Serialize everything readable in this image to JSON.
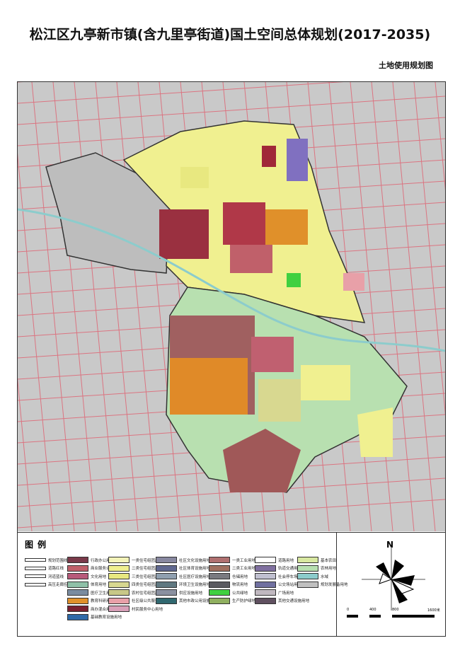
{
  "title": "松江区九亭新市镇(含九里亭街道)国土空间总体规划(2017-2035)",
  "subtitle": "土地使用规划图",
  "legend": {
    "title": "图例",
    "columns": [
      [
        {
          "label": "规划范围线",
          "type": "line"
        },
        {
          "label": "道路红线",
          "type": "line"
        },
        {
          "label": "河道蓝线",
          "type": "line"
        },
        {
          "label": "高压走廊控制线",
          "type": "line"
        }
      ],
      [
        {
          "label": "行政办公用地",
          "color": "#7a3a4a"
        },
        {
          "label": "商业服务业用地",
          "color": "#c0606a"
        },
        {
          "label": "文化用地",
          "color": "#b85a7a"
        },
        {
          "label": "体育用地",
          "color": "#8fc0a8"
        },
        {
          "label": "医疗卫生用地",
          "color": "#7a8ca0"
        },
        {
          "label": "教育科研用地",
          "color": "#e0902a"
        },
        {
          "label": "商办混合用地",
          "color": "#7a2030"
        },
        {
          "label": "基础教育设施用地",
          "color": "#2f6aa8"
        }
      ],
      [
        {
          "label": "一类住宅组团用地",
          "color": "#f3f3b8"
        },
        {
          "label": "二类住宅组团用地",
          "color": "#f0f090"
        },
        {
          "label": "三类住宅组团用地",
          "color": "#e8e880"
        },
        {
          "label": "四类住宅组团用地",
          "color": "#d8d890"
        },
        {
          "label": "农村住宅组团用地",
          "color": "#c8c888"
        },
        {
          "label": "社区级公共服务设施用地",
          "color": "#e8a0a8"
        },
        {
          "label": "村民服务中心用地",
          "color": "#d8a0b8"
        }
      ],
      [
        {
          "label": "社区文化设施用地",
          "color": "#8888a0"
        },
        {
          "label": "社区体育设施用地",
          "color": "#606890"
        },
        {
          "label": "社区医疗设施用地",
          "color": "#90a0b0"
        },
        {
          "label": "环境卫生设施用地",
          "color": "#607880"
        },
        {
          "label": "供应设施用地",
          "color": "#8a90a0"
        },
        {
          "label": "其他市政公用设施用地",
          "color": "#306870"
        }
      ],
      [
        {
          "label": "一类工业用地",
          "color": "#b07070"
        },
        {
          "label": "二类工业用地",
          "color": "#a07060"
        },
        {
          "label": "仓储用地",
          "color": "#7a7a80"
        },
        {
          "label": "物流用地",
          "color": "#5a5a60"
        },
        {
          "label": "公共绿地",
          "color": "#40d040"
        },
        {
          "label": "生产防护绿地",
          "color": "#90b060"
        }
      ],
      [
        {
          "label": "道路用地",
          "color": "#ffffff"
        },
        {
          "label": "轨道交通用地",
          "color": "#8070a0"
        },
        {
          "label": "社会停车场用地",
          "color": "#c0c0d0"
        },
        {
          "label": "公交场站用地",
          "color": "#7070a0"
        },
        {
          "label": "广场用地",
          "color": "#c0b8c0"
        },
        {
          "label": "其他交通设施用地",
          "color": "#605060"
        }
      ],
      [
        {
          "label": "基本农田",
          "color": "#d8e8a0"
        },
        {
          "label": "农林用地",
          "color": "#b8e0b0"
        },
        {
          "label": "水域",
          "color": "#8ccccc"
        },
        {
          "label": "规划发展备用地",
          "color": "#c0c0c0"
        }
      ]
    ]
  },
  "compass": {
    "north_label": "N",
    "scale_labels": [
      "0",
      "400",
      "800",
      "1600米"
    ]
  },
  "colors": {
    "road": "#e06070",
    "background": "#c9c9c9",
    "residential": "#f0f090",
    "green": "#b8e0b0"
  }
}
